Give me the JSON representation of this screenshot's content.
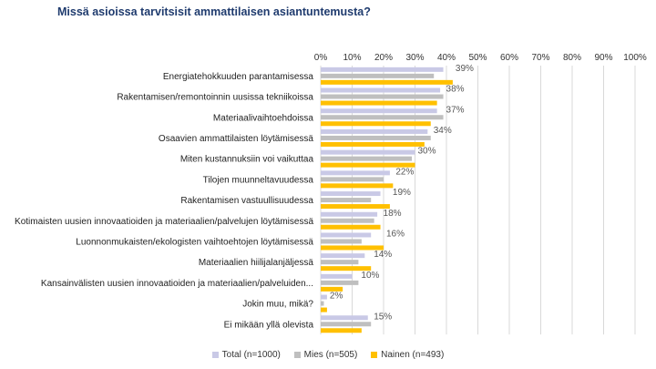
{
  "chart_data": {
    "type": "bar",
    "orientation": "horizontal",
    "title": "Missä asioissa tarvitsisit ammattilaisen asiantuntemusta?",
    "categories": [
      "Energiatehokkuuden parantamisessa",
      "Rakentamisen/remontoinnin uusissa tekniikoissa",
      "Materiaalivaihtoehdoissa",
      "Osaavien ammattilaisten löytämisessä",
      "Miten kustannuksiin voi vaikuttaa",
      "Tilojen muunneltavuudessa",
      "Rakentamisen vastuullisuudessa",
      "Kotimaisten uusien innovaatioiden ja materiaalien/palvelujen löytämisessä",
      "Luonnonmukaisten/ekologisten vaihtoehtojen löytämisessä",
      "Materiaalien hiilijalanjäljessä",
      "Kansainvälisten uusien innovaatioiden ja materiaalien/palveluiden...",
      "Jokin muu, mikä?",
      "Ei mikään yllä olevista"
    ],
    "series": [
      {
        "name": "Total (n=1000)",
        "color": "#c9c9e6",
        "values": [
          39,
          38,
          37,
          34,
          30,
          22,
          19,
          18,
          16,
          14,
          10,
          2,
          15
        ],
        "labels": [
          "39%",
          "38%",
          "37%",
          "34%",
          "30%",
          "22%",
          "19%",
          "18%",
          "16%",
          "14%",
          "10%",
          "2%",
          "15%"
        ]
      },
      {
        "name": "Mies (n=505)",
        "color": "#bfbfbf",
        "values": [
          36,
          39,
          39,
          35,
          29,
          20,
          16,
          17,
          13,
          12,
          12,
          1,
          16
        ]
      },
      {
        "name": "Nainen (n=493)",
        "color": "#ffc000",
        "values": [
          42,
          37,
          35,
          33,
          30,
          23,
          22,
          19,
          20,
          16,
          7,
          2,
          13
        ]
      }
    ],
    "xlim": [
      0,
      100
    ],
    "xticks": [
      "0%",
      "10%",
      "20%",
      "30%",
      "40%",
      "50%",
      "60%",
      "70%",
      "80%",
      "90%",
      "100%"
    ],
    "grid": true,
    "legend_position": "bottom"
  }
}
